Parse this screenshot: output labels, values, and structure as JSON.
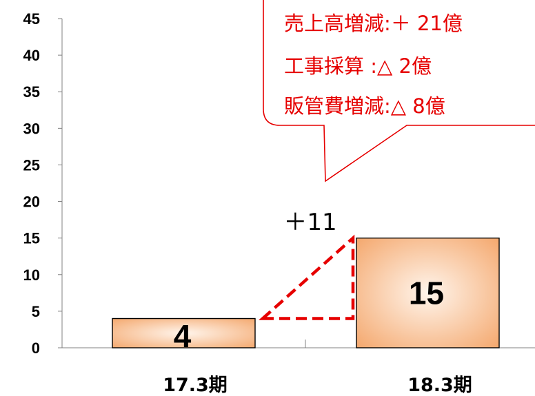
{
  "chart_data": {
    "type": "bar",
    "categories": [
      "17.3期",
      "18.3期"
    ],
    "values": [
      4,
      15
    ],
    "value_labels": [
      "4",
      "15"
    ],
    "ylim": [
      0,
      45
    ],
    "yticks": [
      "0",
      "5",
      "10",
      "15",
      "20",
      "25",
      "30",
      "35",
      "40",
      "45"
    ],
    "ytick_values": [
      0,
      5,
      10,
      15,
      20,
      25,
      30,
      35,
      40,
      45
    ],
    "grid": false,
    "bar_color": "#f4a86e",
    "bar_highlight": "#fff5ec",
    "delta_label": "＋11",
    "delta_color": "#e60000",
    "callout": {
      "lines": [
        "売上高増減:＋ 21億",
        "工事採算 :△ 2億",
        "販管費増減:△ 8億"
      ],
      "border_color": "#e60000",
      "text_color": "#e60000"
    }
  }
}
